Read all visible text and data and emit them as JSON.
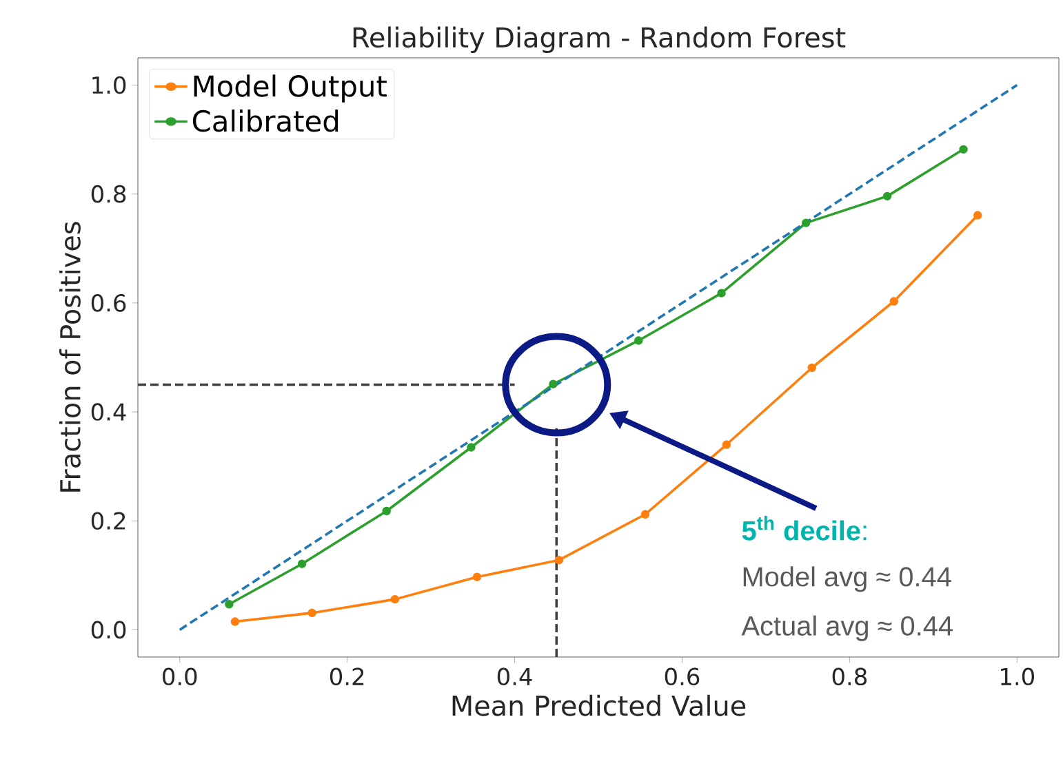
{
  "chart_data": {
    "type": "line",
    "title": "Reliability Diagram - Random Forest",
    "xlabel": "Mean Predicted Value",
    "ylabel": "Fraction of Positives",
    "xlim": [
      -0.05,
      1.05
    ],
    "ylim": [
      -0.05,
      1.05
    ],
    "xticks": [
      {
        "value": 0,
        "label": "0.0"
      },
      0.2,
      0.4,
      0.6,
      0.8,
      {
        "value": 1,
        "label": "1.0"
      }
    ],
    "yticks": [
      {
        "value": 0,
        "label": "0.0"
      },
      0.2,
      0.4,
      0.6,
      0.8,
      {
        "value": 1,
        "label": "1.0"
      }
    ],
    "legend": "top left",
    "series": [
      {
        "name": "Model Output",
        "color": "#ff7f0e",
        "marker": "circle",
        "x": [
          0.066,
          0.158,
          0.257,
          0.355,
          0.453,
          0.556,
          0.653,
          0.755,
          0.853,
          0.953
        ],
        "values": [
          0.015,
          0.031,
          0.056,
          0.097,
          0.128,
          0.212,
          0.34,
          0.481,
          0.603,
          0.761
        ]
      },
      {
        "name": "Calibrated",
        "color": "#2ca02c",
        "marker": "circle",
        "x": [
          0.059,
          0.146,
          0.247,
          0.348,
          0.446,
          0.548,
          0.647,
          0.748,
          0.845,
          0.936
        ],
        "values": [
          0.047,
          0.121,
          0.218,
          0.335,
          0.451,
          0.531,
          0.618,
          0.747,
          0.796,
          0.882
        ]
      },
      {
        "color": "#1f77b4",
        "line_style": "dashed",
        "x": [
          0,
          1
        ],
        "values": [
          0,
          1
        ]
      },
      {
        "color": "#404040",
        "line_style": "dashed",
        "x": [
          -0.05,
          0.4
        ],
        "values": [
          0.45,
          0.45
        ]
      },
      {
        "color": "#404040",
        "line_style": "dashed",
        "x": [
          0.45,
          0.45
        ],
        "values": [
          -0.05,
          0.37
        ]
      }
    ],
    "annotations": [
      "**5$^{th}$ decile**:",
      "Model avg ≈ 0.44",
      "Actual avg ≈ 0.44"
    ]
  }
}
